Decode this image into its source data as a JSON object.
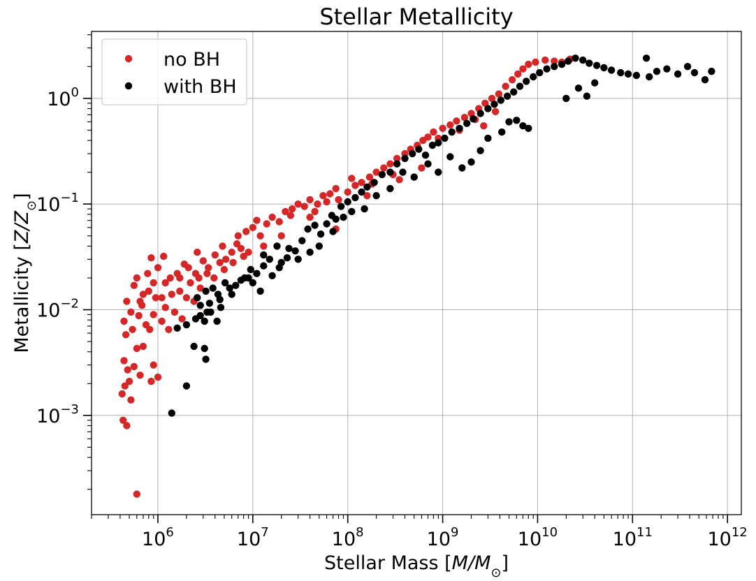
{
  "chart_data": {
    "type": "scatter",
    "title": "Stellar Metallicity",
    "xlabel": {
      "prefix": "Stellar Mass [",
      "var": "M/M",
      "sub": "⊙",
      "suffix": "]"
    },
    "ylabel": {
      "prefix": "Metallicity [",
      "var": "Z/Z",
      "sub": "⊙",
      "suffix": "]"
    },
    "xscale": "log",
    "yscale": "log",
    "xlim": [
      200000,
      1400000000000.0
    ],
    "ylim": [
      0.000115,
      4.3
    ],
    "grid": true,
    "legend_position": "upper left",
    "x_ticks": [
      {
        "value": 1000000.0,
        "base": "10",
        "exp": "6"
      },
      {
        "value": 10000000.0,
        "base": "10",
        "exp": "7"
      },
      {
        "value": 100000000.0,
        "base": "10",
        "exp": "8"
      },
      {
        "value": 1000000000.0,
        "base": "10",
        "exp": "9"
      },
      {
        "value": 10000000000.0,
        "base": "10",
        "exp": "10"
      },
      {
        "value": 100000000000.0,
        "base": "10",
        "exp": "11"
      },
      {
        "value": 1000000000000.0,
        "base": "10",
        "exp": "12"
      }
    ],
    "y_ticks": [
      {
        "value": 0.001,
        "base": "10",
        "exp": "−3"
      },
      {
        "value": 0.01,
        "base": "10",
        "exp": "−2"
      },
      {
        "value": 0.1,
        "base": "10",
        "exp": "−1"
      },
      {
        "value": 1,
        "base": "10",
        "exp": "0"
      }
    ],
    "series": [
      {
        "name": "no BH",
        "color": "#d62728",
        "points": [
          [
            430000,
            0.0009
          ],
          [
            470000,
            0.0008
          ],
          [
            600000,
            0.00018
          ],
          [
            420000,
            0.0016
          ],
          [
            450000,
            0.0019
          ],
          [
            520000,
            0.0014
          ],
          [
            500000,
            0.0021
          ],
          [
            480000,
            0.0027
          ],
          [
            440000,
            0.0033
          ],
          [
            560000,
            0.0029
          ],
          [
            650000,
            0.0024
          ],
          [
            850000,
            0.0021
          ],
          [
            1000000,
            0.0023
          ],
          [
            900000,
            0.003
          ],
          [
            700000,
            0.0045
          ],
          [
            460000,
            0.0058
          ],
          [
            540000,
            0.0065
          ],
          [
            600000,
            0.0043
          ],
          [
            520000,
            0.0095
          ],
          [
            470000,
            0.012
          ],
          [
            440000,
            0.0078
          ],
          [
            630000,
            0.0088
          ],
          [
            750000,
            0.0072
          ],
          [
            680000,
            0.011
          ],
          [
            820000,
            0.0065
          ],
          [
            700000,
            0.014
          ],
          [
            560000,
            0.017
          ],
          [
            900000,
            0.009
          ],
          [
            1100000,
            0.0078
          ],
          [
            1200000,
            0.0105
          ],
          [
            950000,
            0.013
          ],
          [
            1300000,
            0.0065
          ],
          [
            1500000,
            0.0095
          ],
          [
            1800000,
            0.0082
          ],
          [
            600000,
            0.02
          ],
          [
            780000,
            0.022
          ],
          [
            850000,
            0.031
          ],
          [
            1000000,
            0.025
          ],
          [
            1200000,
            0.018
          ],
          [
            1400000,
            0.014
          ],
          [
            1600000,
            0.022
          ],
          [
            2000000,
            0.013
          ],
          [
            2200000,
            0.018
          ],
          [
            1900000,
            0.027
          ],
          [
            2500000,
            0.022
          ],
          [
            2800000,
            0.016
          ],
          [
            3000000,
            0.029
          ],
          [
            3400000,
            0.025
          ],
          [
            2600000,
            0.035
          ],
          [
            4000000,
            0.033
          ],
          [
            4500000,
            0.028
          ],
          [
            5200000,
            0.03
          ],
          [
            4800000,
            0.04
          ],
          [
            6000000,
            0.035
          ],
          [
            6800000,
            0.042
          ],
          [
            7500000,
            0.038
          ],
          [
            8500000,
            0.055
          ],
          [
            7000000,
            0.05
          ],
          [
            10000000,
            0.06
          ],
          [
            12000000,
            0.05
          ],
          [
            11000000,
            0.07
          ],
          [
            14000000,
            0.065
          ],
          [
            16000000,
            0.075
          ],
          [
            19000000,
            0.068
          ],
          [
            22000000,
            0.085
          ],
          [
            26000000,
            0.09
          ],
          [
            30000000,
            0.1
          ],
          [
            25000000,
            0.078
          ],
          [
            35000000,
            0.095
          ],
          [
            40000000,
            0.11
          ],
          [
            48000000,
            0.1
          ],
          [
            55000000,
            0.12
          ],
          [
            45000000,
            0.085
          ],
          [
            65000000,
            0.125
          ],
          [
            75000000,
            0.14
          ],
          [
            60000000,
            0.105
          ],
          [
            80000000,
            0.11
          ],
          [
            100000000,
            0.13
          ],
          [
            120000000,
            0.15
          ],
          [
            110000000,
            0.175
          ],
          [
            140000000,
            0.16
          ],
          [
            170000000,
            0.18
          ],
          [
            200000000,
            0.2
          ],
          [
            240000000,
            0.22
          ],
          [
            180000000,
            0.155
          ],
          [
            280000000,
            0.24
          ],
          [
            330000000,
            0.27
          ],
          [
            400000000,
            0.3
          ],
          [
            460000000,
            0.33
          ],
          [
            540000000,
            0.36
          ],
          [
            620000000,
            0.4
          ],
          [
            700000000,
            0.43
          ],
          [
            800000000,
            0.48
          ],
          [
            1000000000,
            0.52
          ],
          [
            1200000000,
            0.56
          ],
          [
            1400000000,
            0.61
          ],
          [
            1700000000,
            0.66
          ],
          [
            2000000000,
            0.72
          ],
          [
            2400000000,
            0.8
          ],
          [
            2800000000,
            0.9
          ],
          [
            3300000000,
            1.0
          ],
          [
            3900000000,
            1.1
          ],
          [
            4600000000,
            1.3
          ],
          [
            5400000000,
            1.5
          ],
          [
            6200000000,
            1.7
          ],
          [
            7000000000,
            1.9
          ],
          [
            8000000000,
            2.1
          ],
          [
            9500000000,
            2.2
          ],
          [
            12000000000,
            2.3
          ],
          [
            15000000000,
            2.25
          ],
          [
            18000000000,
            2.2
          ],
          [
            22000000000,
            2.35
          ],
          [
            350000000,
            0.17
          ],
          [
            600000000,
            0.22
          ],
          [
            300000000,
            0.19
          ],
          [
            160000000,
            0.12
          ],
          [
            75000000,
            0.058
          ],
          [
            40000000,
            0.075
          ],
          [
            20000000,
            0.05
          ],
          [
            13000000,
            0.04
          ],
          [
            9000000,
            0.035
          ],
          [
            1700000,
            0.015
          ],
          [
            2400000,
            0.012
          ],
          [
            1150000,
            0.032
          ],
          [
            800000,
            0.015
          ],
          [
            650000,
            0.012
          ],
          [
            900000,
            0.018
          ],
          [
            1100000,
            0.013
          ],
          [
            1350000,
            0.02
          ],
          [
            1700000,
            0.02
          ],
          [
            2100000,
            0.025
          ],
          [
            2700000,
            0.02
          ],
          [
            3300000,
            0.022
          ],
          [
            3900000,
            0.02
          ],
          [
            5000000,
            0.024
          ],
          [
            6200000,
            0.028
          ],
          [
            8000000,
            0.032
          ],
          [
            900000000,
            0.42
          ],
          [
            1500000000,
            0.5
          ],
          [
            2200000000,
            0.63
          ],
          [
            2700000000,
            0.55
          ],
          [
            3600000000,
            0.75
          ]
        ]
      },
      {
        "name": "with BH",
        "color": "#000000",
        "points": [
          [
            1400000,
            0.00105
          ],
          [
            2000000,
            0.0019
          ],
          [
            2400000,
            0.0045
          ],
          [
            3100000,
            0.0043
          ],
          [
            3200000,
            0.0034
          ],
          [
            1600000,
            0.0067
          ],
          [
            2000000,
            0.0072
          ],
          [
            2500000,
            0.0082
          ],
          [
            2800000,
            0.0088
          ],
          [
            3100000,
            0.0078
          ],
          [
            3600000,
            0.0095
          ],
          [
            4200000,
            0.0078
          ],
          [
            4600000,
            0.0105
          ],
          [
            2800000,
            0.011
          ],
          [
            2600000,
            0.013
          ],
          [
            3200000,
            0.015
          ],
          [
            3800000,
            0.016
          ],
          [
            4300000,
            0.014
          ],
          [
            5100000,
            0.018
          ],
          [
            5700000,
            0.016
          ],
          [
            6600000,
            0.017
          ],
          [
            7500000,
            0.019
          ],
          [
            8200000,
            0.02
          ],
          [
            9500000,
            0.024
          ],
          [
            11000000,
            0.022
          ],
          [
            13000000,
            0.026
          ],
          [
            15000000,
            0.03
          ],
          [
            19000000,
            0.025
          ],
          [
            23000000,
            0.031
          ],
          [
            28000000,
            0.036
          ],
          [
            33000000,
            0.045
          ],
          [
            38000000,
            0.058
          ],
          [
            45000000,
            0.063
          ],
          [
            52000000,
            0.052
          ],
          [
            60000000,
            0.065
          ],
          [
            68000000,
            0.078
          ],
          [
            75000000,
            0.072
          ],
          [
            85000000,
            0.095
          ],
          [
            100000000,
            0.105
          ],
          [
            120000000,
            0.115
          ],
          [
            140000000,
            0.13
          ],
          [
            160000000,
            0.145
          ],
          [
            190000000,
            0.16
          ],
          [
            230000000,
            0.19
          ],
          [
            280000000,
            0.2
          ],
          [
            330000000,
            0.24
          ],
          [
            400000000,
            0.27
          ],
          [
            480000000,
            0.3
          ],
          [
            560000000,
            0.33
          ],
          [
            660000000,
            0.29
          ],
          [
            780000000,
            0.36
          ],
          [
            900000000,
            0.38
          ],
          [
            1050000000,
            0.42
          ],
          [
            1250000000,
            0.48
          ],
          [
            1500000000,
            0.52
          ],
          [
            1800000000,
            0.58
          ],
          [
            2100000000,
            0.64
          ],
          [
            2500000000,
            0.72
          ],
          [
            3000000000,
            0.8
          ],
          [
            3500000000,
            0.88
          ],
          [
            4100000000,
            0.96
          ],
          [
            4800000000,
            1.05
          ],
          [
            5600000000,
            1.15
          ],
          [
            6500000000,
            1.3
          ],
          [
            7600000000,
            1.45
          ],
          [
            9000000000,
            1.6
          ],
          [
            10500000000,
            1.75
          ],
          [
            12500000000,
            1.9
          ],
          [
            15000000000,
            2.0
          ],
          [
            18000000000,
            2.1
          ],
          [
            21000000000,
            2.25
          ],
          [
            25000000000,
            2.4
          ],
          [
            30000000000,
            2.3
          ],
          [
            35000000000,
            2.15
          ],
          [
            42000000000,
            2.05
          ],
          [
            50000000000,
            1.95
          ],
          [
            60000000000,
            1.85
          ],
          [
            75000000000,
            1.75
          ],
          [
            90000000000,
            1.7
          ],
          [
            110000000000,
            1.65
          ],
          [
            140000000000,
            2.4
          ],
          [
            150000000000,
            1.6
          ],
          [
            180000000000,
            1.8
          ],
          [
            230000000000,
            1.9
          ],
          [
            300000000000,
            1.7
          ],
          [
            380000000000,
            2.0
          ],
          [
            450000000000,
            1.75
          ],
          [
            580000000000,
            1.5
          ],
          [
            680000000000,
            1.8
          ],
          [
            20000000000,
            1.0
          ],
          [
            27000000000,
            1.25
          ],
          [
            33000000000,
            1.05
          ],
          [
            40000000000,
            1.4
          ],
          [
            7000000000,
            0.55
          ],
          [
            8000000000,
            0.52
          ],
          [
            6000000000,
            0.62
          ],
          [
            5000000000,
            0.6
          ],
          [
            4200000000,
            0.48
          ],
          [
            3000000000,
            0.42
          ],
          [
            2500000000,
            0.32
          ],
          [
            2000000000,
            0.25
          ],
          [
            1600000000,
            0.22
          ],
          [
            1200000000,
            0.28
          ],
          [
            900000000,
            0.2
          ],
          [
            700000000,
            0.24
          ],
          [
            500000000,
            0.18
          ],
          [
            380000000,
            0.2
          ],
          [
            280000000,
            0.14
          ],
          [
            200000000,
            0.12
          ],
          [
            150000000,
            0.09
          ],
          [
            110000000,
            0.085
          ],
          [
            90000000,
            0.075
          ],
          [
            70000000,
            0.055
          ],
          [
            50000000,
            0.04
          ],
          [
            40000000,
            0.035
          ],
          [
            30000000,
            0.03
          ],
          [
            24000000,
            0.038
          ],
          [
            18000000,
            0.04
          ],
          [
            13000000,
            0.033
          ],
          [
            9000000,
            0.02
          ],
          [
            6000000,
            0.014
          ],
          [
            4500000,
            0.0125
          ],
          [
            3500000,
            0.0115
          ],
          [
            3300000,
            0.0095
          ],
          [
            20000000,
            0.028
          ],
          [
            16000000,
            0.021
          ],
          [
            10000000,
            0.018
          ],
          [
            12000000,
            0.015
          ]
        ]
      }
    ]
  }
}
